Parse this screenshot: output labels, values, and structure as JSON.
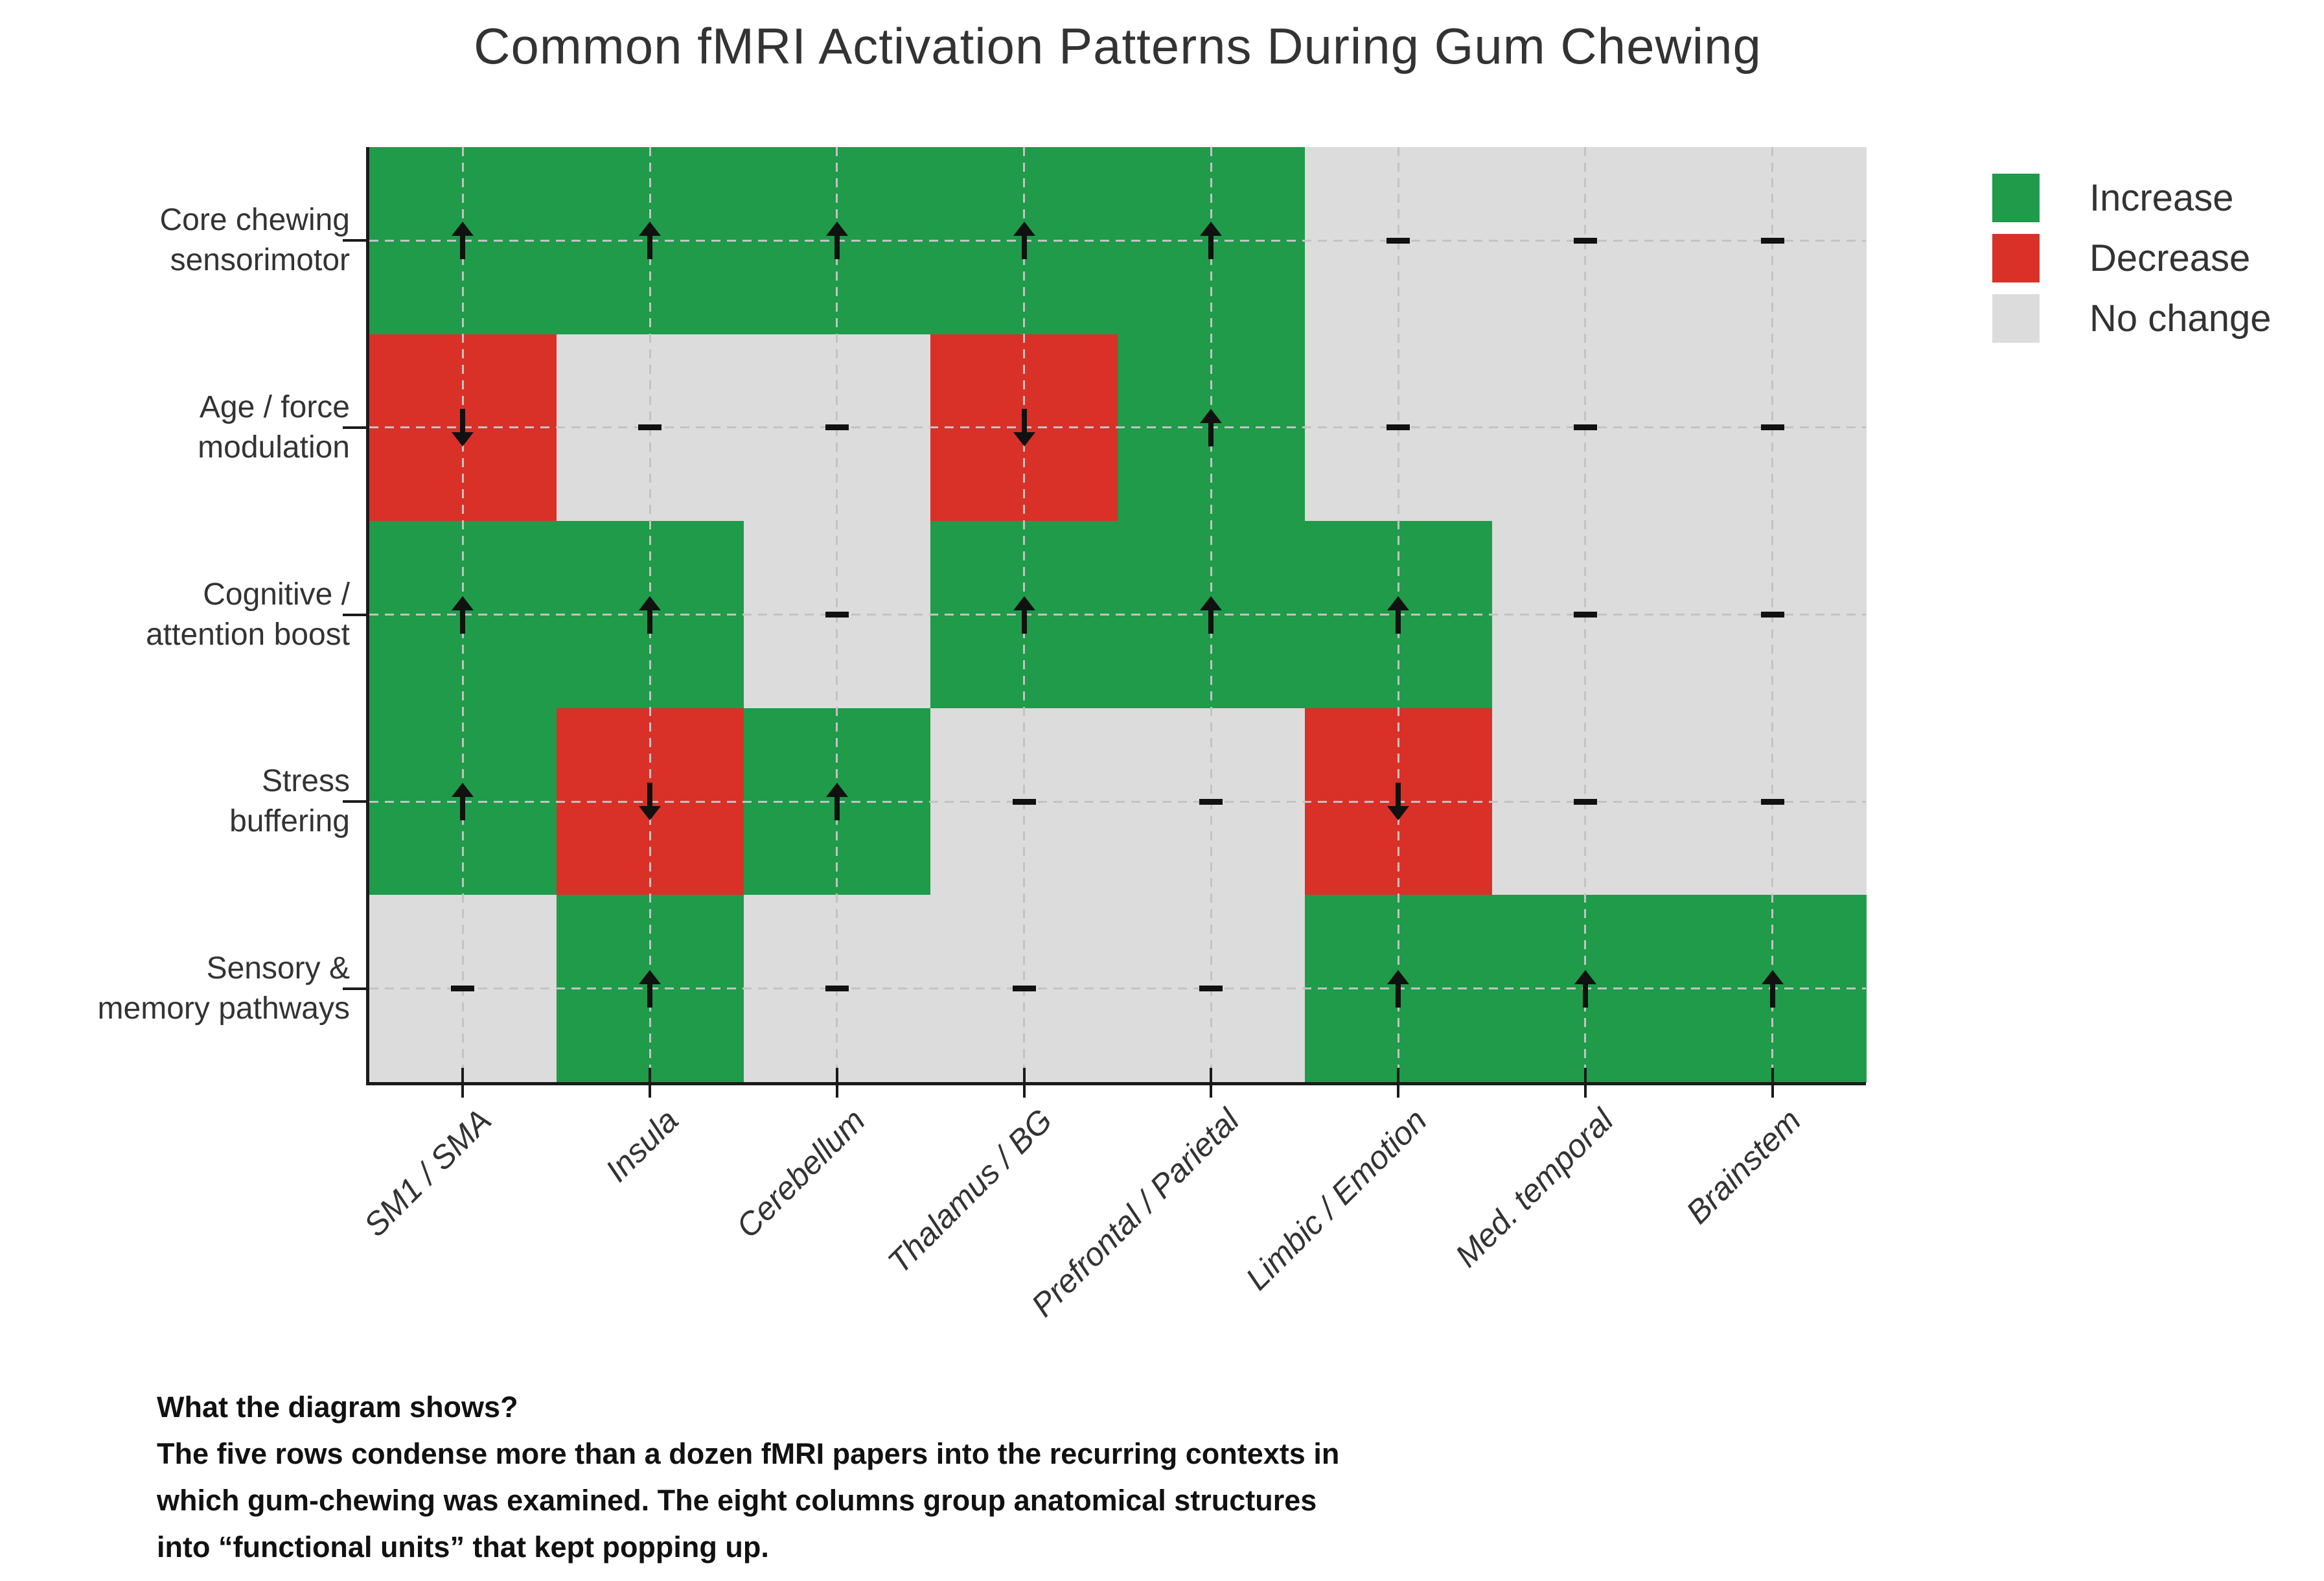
{
  "title": "Common fMRI Activation Patterns During Gum Chewing",
  "legend": {
    "items": [
      {
        "label": "Increase",
        "key": "increase"
      },
      {
        "label": "Decrease",
        "key": "decrease"
      },
      {
        "label": "No change",
        "key": "no_change"
      }
    ]
  },
  "chart_data": {
    "type": "heatmap",
    "title": "Common fMRI Activation Patterns During Gum Chewing",
    "row_labels": [
      [
        "Core chewing",
        "sensorimotor"
      ],
      [
        "Age / force",
        "modulation"
      ],
      [
        "Cognitive /",
        "attention boost"
      ],
      [
        "Stress",
        "buffering"
      ],
      [
        "Sensory &",
        "memory pathways"
      ]
    ],
    "columns": [
      "SM1 / SMA",
      "Insula",
      "Cerebellum",
      "Thalamus / BG",
      "Prefrontal / Parietal",
      "Limbic / Emotion",
      "Med. temporal",
      "Brainstem"
    ],
    "values": [
      [
        "increase",
        "increase",
        "increase",
        "increase",
        "increase",
        "no_change",
        "no_change",
        "no_change"
      ],
      [
        "decrease",
        "no_change",
        "no_change",
        "decrease",
        "increase",
        "no_change",
        "no_change",
        "no_change"
      ],
      [
        "increase",
        "increase",
        "no_change",
        "increase",
        "increase",
        "increase",
        "no_change",
        "no_change"
      ],
      [
        "increase",
        "decrease",
        "increase",
        "no_change",
        "no_change",
        "decrease",
        "no_change",
        "no_change"
      ],
      [
        "no_change",
        "increase",
        "no_change",
        "no_change",
        "no_change",
        "increase",
        "increase",
        "increase"
      ]
    ],
    "symbols": {
      "increase": "↑",
      "decrease": "↓",
      "no_change": "–"
    },
    "colors": {
      "increase": "#1f9b4a",
      "decrease": "#d93128",
      "no_change": "#dcdcdc"
    },
    "legend_entries": [
      "Increase",
      "Decrease",
      "No change"
    ],
    "legend_position": "outside upper right",
    "grid": "dashed gray gridlines through cell centers",
    "axes": {
      "x_tick_rotation": 45,
      "spines": [
        "left",
        "bottom"
      ]
    }
  },
  "caption": {
    "lines": [
      "What the diagram shows?",
      "The five rows condense more than a dozen fMRI papers into the recurring contexts in",
      "which gum-chewing was examined. The eight columns group anatomical structures",
      "into “functional units” that kept popping up."
    ]
  }
}
